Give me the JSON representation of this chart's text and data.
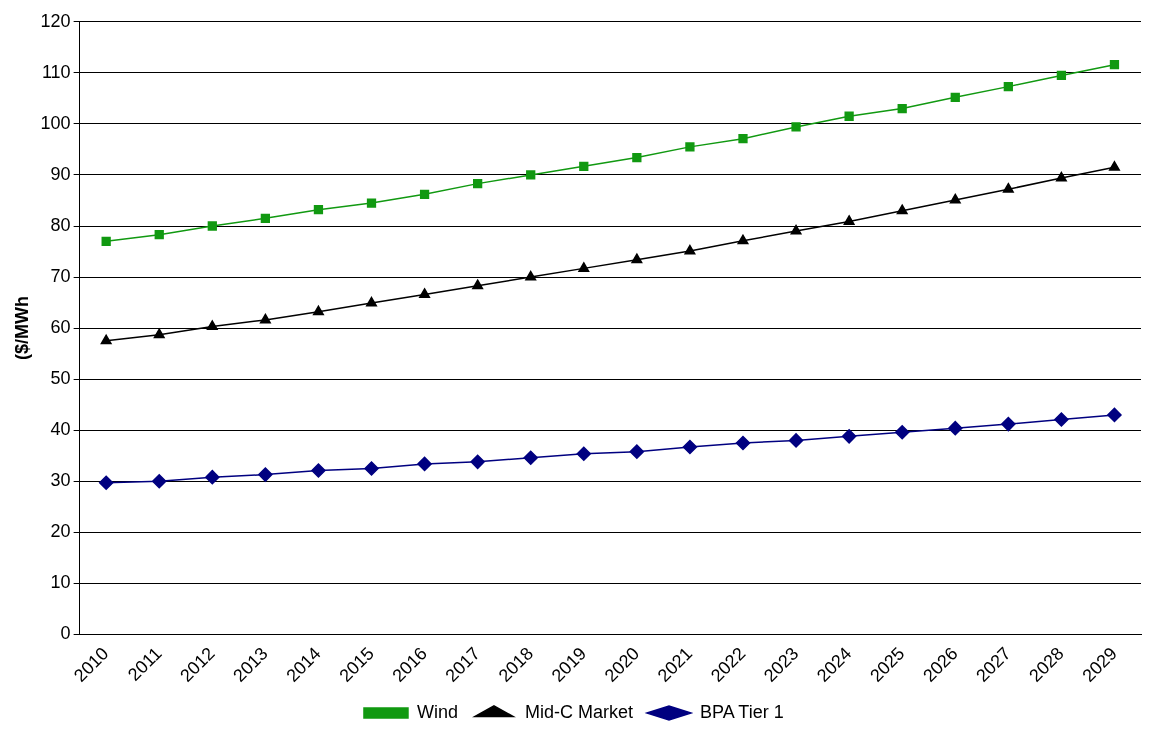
{
  "chart_data": {
    "type": "line",
    "ylabel": "($/MWh",
    "categories": [
      "2010",
      "2011",
      "2012",
      "2013",
      "2014",
      "2015",
      "2016",
      "2017",
      "2018",
      "2019",
      "2020",
      "2021",
      "2022",
      "2023",
      "2024",
      "2025",
      "2026",
      "2027",
      "2028",
      "2029"
    ],
    "series": [
      {
        "name": "Wind",
        "color": "#119911",
        "marker": "square",
        "values": [
          77,
          78.3,
          80,
          81.5,
          83.2,
          84.5,
          86.2,
          88.3,
          90,
          91.7,
          93.4,
          95.5,
          97.1,
          99.4,
          101.5,
          103,
          105.2,
          107.3,
          109.5,
          111.6
        ]
      },
      {
        "name": "Mid-C Market",
        "color": "#000000",
        "marker": "triangle",
        "values": [
          57.5,
          58.7,
          60.3,
          61.6,
          63.2,
          64.9,
          66.6,
          68.3,
          70,
          71.7,
          73.4,
          75.1,
          77.1,
          79,
          80.9,
          83,
          85.1,
          87.2,
          89.4,
          91.5
        ]
      },
      {
        "name": "BPA Tier 1",
        "color": "#000080",
        "marker": "diamond",
        "values": [
          29.7,
          30,
          30.8,
          31.3,
          32.1,
          32.5,
          33.4,
          33.8,
          34.6,
          35.4,
          35.8,
          36.7,
          37.5,
          38,
          38.8,
          39.6,
          40.4,
          41.2,
          42.1,
          43
        ]
      }
    ],
    "ylim": [
      0,
      120
    ],
    "yticks": [
      0,
      10,
      20,
      30,
      40,
      50,
      60,
      70,
      80,
      90,
      100,
      110,
      120
    ],
    "grid": "y",
    "legend": "bottom",
    "line_style": "solid"
  }
}
